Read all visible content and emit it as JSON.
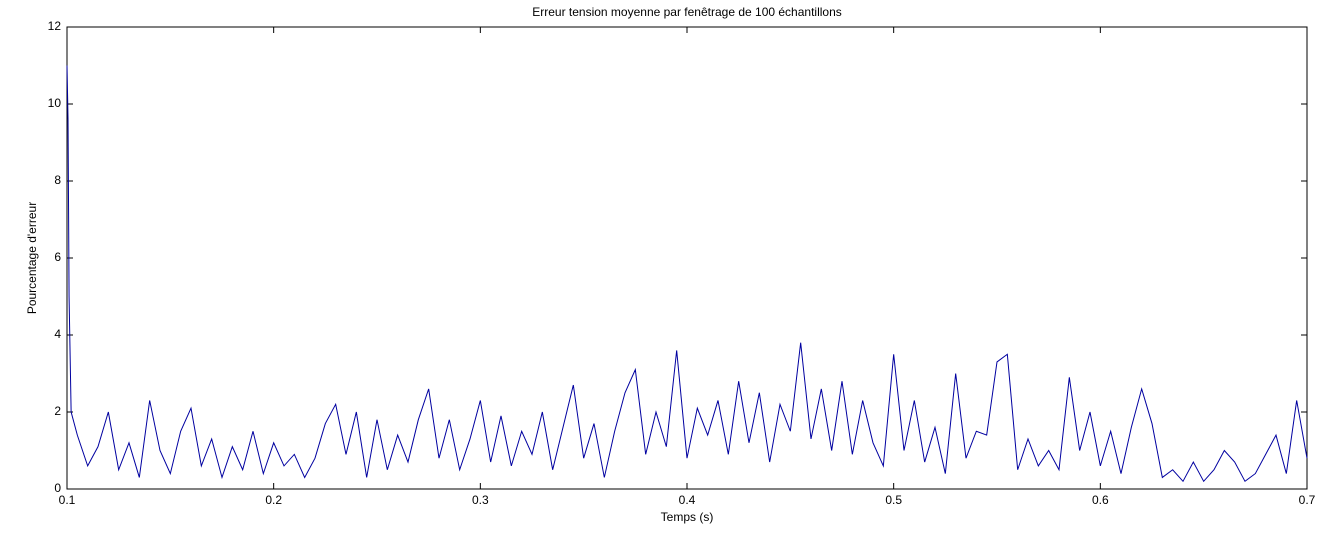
{
  "chart_data": {
    "type": "line",
    "title": "Erreur tension moyenne par fenêtrage de 100 échantillons",
    "x_label": "Temps (s)",
    "y_label": "Pourcentage d'erreur",
    "x": [
      0.1,
      0.1005,
      0.101,
      0.102,
      0.105,
      0.11,
      0.115,
      0.12,
      0.125,
      0.13,
      0.135,
      0.14,
      0.145,
      0.15,
      0.155,
      0.16,
      0.165,
      0.17,
      0.175,
      0.18,
      0.185,
      0.19,
      0.195,
      0.2,
      0.205,
      0.21,
      0.215,
      0.22,
      0.225,
      0.23,
      0.235,
      0.24,
      0.245,
      0.25,
      0.255,
      0.26,
      0.265,
      0.27,
      0.275,
      0.28,
      0.285,
      0.29,
      0.295,
      0.3,
      0.305,
      0.31,
      0.315,
      0.32,
      0.325,
      0.33,
      0.335,
      0.34,
      0.345,
      0.35,
      0.355,
      0.36,
      0.365,
      0.37,
      0.375,
      0.38,
      0.385,
      0.39,
      0.395,
      0.4,
      0.405,
      0.41,
      0.415,
      0.42,
      0.425,
      0.43,
      0.435,
      0.44,
      0.445,
      0.45,
      0.455,
      0.46,
      0.465,
      0.47,
      0.475,
      0.48,
      0.485,
      0.49,
      0.495,
      0.5,
      0.505,
      0.51,
      0.515,
      0.52,
      0.525,
      0.53,
      0.535,
      0.54,
      0.545,
      0.55,
      0.555,
      0.56,
      0.565,
      0.57,
      0.575,
      0.58,
      0.585,
      0.59,
      0.595,
      0.6,
      0.605,
      0.61,
      0.615,
      0.62,
      0.625,
      0.63,
      0.635,
      0.64,
      0.645,
      0.65,
      0.655,
      0.66,
      0.665,
      0.67,
      0.675,
      0.68,
      0.685,
      0.69,
      0.695,
      0.7
    ],
    "series": [
      {
        "color": "#0000a0",
        "values": [
          11,
          9.6,
          5,
          2.0,
          1.4,
          0.6,
          1.1,
          2.0,
          0.5,
          1.2,
          0.3,
          2.3,
          1.0,
          0.4,
          1.5,
          2.1,
          0.6,
          1.3,
          0.3,
          1.1,
          0.5,
          1.5,
          0.4,
          1.2,
          0.6,
          0.9,
          0.3,
          0.8,
          1.7,
          2.2,
          0.9,
          2.0,
          0.3,
          1.8,
          0.5,
          1.4,
          0.7,
          1.8,
          2.6,
          0.8,
          1.8,
          0.5,
          1.3,
          2.3,
          0.7,
          1.9,
          0.6,
          1.5,
          0.9,
          2.0,
          0.5,
          1.6,
          2.7,
          0.8,
          1.7,
          0.3,
          1.5,
          2.5,
          3.1,
          0.9,
          2.0,
          1.1,
          3.6,
          0.8,
          2.1,
          1.4,
          2.3,
          0.9,
          2.8,
          1.2,
          2.5,
          0.7,
          2.2,
          1.5,
          3.8,
          1.3,
          2.6,
          1.0,
          2.8,
          0.9,
          2.3,
          1.2,
          0.6,
          3.5,
          1.0,
          2.3,
          0.7,
          1.6,
          0.4,
          3.0,
          0.8,
          1.5,
          1.4,
          3.3,
          3.5,
          0.5,
          1.3,
          0.6,
          1.0,
          0.5,
          2.9,
          1.0,
          2.0,
          0.6,
          1.5,
          0.4,
          1.6,
          2.6,
          1.7,
          0.3,
          0.5,
          0.2,
          0.7,
          0.2,
          0.5,
          1.0,
          0.7,
          0.2,
          0.4,
          0.9,
          1.4,
          0.4,
          2.3,
          0.8
        ]
      }
    ],
    "xlim": [
      0.1,
      0.7
    ],
    "xticks": [
      0.1,
      0.2,
      0.3,
      0.4,
      0.5,
      0.6,
      0.7
    ],
    "ylim": [
      0,
      12
    ],
    "yticks": [
      0,
      2,
      4,
      6,
      8,
      10,
      12
    ],
    "grid": false
  }
}
